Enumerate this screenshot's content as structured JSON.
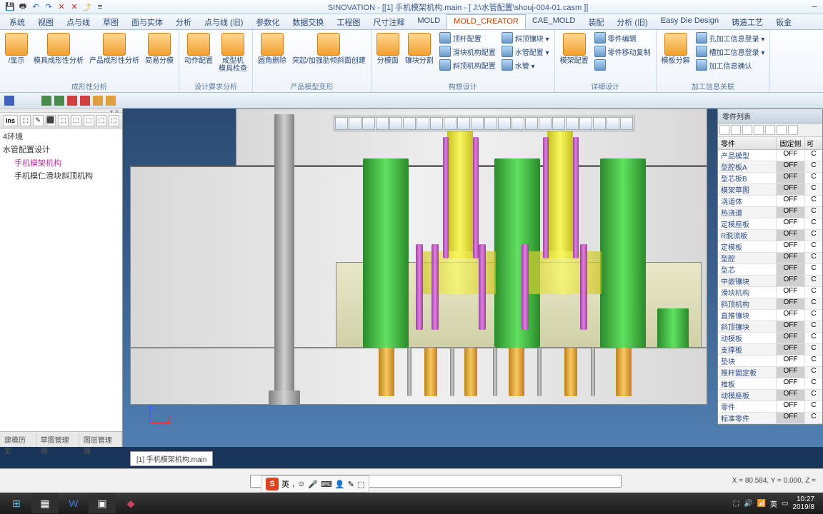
{
  "title_app": "SINOVATION",
  "title_doc": "[[1] 手机模架机构.main - [ J:\\水管配置\\shouj-004-01.casm ]]",
  "menus": [
    "系统",
    "视图",
    "点与线",
    "草图",
    "面与实体",
    "分析",
    "点与线 (旧)",
    "参数化",
    "数据交换",
    "工程图",
    "尺寸注释",
    "MOLD",
    "MOLD_CREATOR",
    "CAE_MOLD",
    "装配",
    "分析 (旧)",
    "Easy Die Design",
    "铸造工艺",
    "钣金"
  ],
  "active_menu": "MOLD_CREATOR",
  "ribbon_groups": [
    {
      "label": "成形性分析",
      "buttons": [
        "/显示",
        "模具成形性分析",
        "产品成形性分析",
        "简易分模"
      ]
    },
    {
      "label": "设计要求分析",
      "buttons": [
        "动作配置",
        "成型机\n模具检查"
      ]
    },
    {
      "label": "产品模型变形",
      "buttons": [
        "圆角删除",
        "突起/加强肋倾斜面创建"
      ]
    },
    {
      "label": "构想设计",
      "buttons": [
        "分模面",
        "镶块分割"
      ],
      "small_cols": [
        [
          "顶杆配置",
          "滑块机构配置",
          "斜顶机构配置"
        ],
        [
          "斜顶镶块 ▾",
          "水管配置 ▾",
          "水管 ▾"
        ]
      ]
    },
    {
      "label": "详细设计",
      "buttons": [
        "模架配置"
      ],
      "small_cols": [
        [
          "零件编辑",
          "零件移动复制",
          ""
        ]
      ]
    },
    {
      "label": "加工信息关联",
      "buttons": [
        "模板分解"
      ],
      "small_cols": [
        [
          "孔加工信息登录 ▾",
          "槽加工信息登录 ▾",
          "加工信息确认"
        ]
      ]
    }
  ],
  "tree": {
    "toolbar_btns": [
      "Ins",
      "⬚",
      "✎",
      "⬛",
      "⬚",
      "⬚",
      "⬚",
      "⬚",
      "⬚"
    ],
    "title": "4环境",
    "root": "水管配置设计",
    "items": [
      {
        "label": "手机模架机构",
        "sel": true
      },
      {
        "label": "手机模仁滑块斜顶机构",
        "sel": false
      }
    ],
    "tabs": [
      "建模历史",
      "草图管理器",
      "图层管理器"
    ]
  },
  "parts": {
    "title": "零件列表",
    "columns": [
      "零件",
      "固定侧",
      "可"
    ],
    "rows": [
      {
        "name": "产品模型",
        "v": "OFF",
        "alt": false
      },
      {
        "name": "型腔板A",
        "v": "OFF",
        "alt": true
      },
      {
        "name": "型芯板B",
        "v": "OFF",
        "alt": false,
        "hl": true
      },
      {
        "name": "模架草图",
        "v": "OFF",
        "alt": true
      },
      {
        "name": "浇道体",
        "v": "OFF",
        "alt": false
      },
      {
        "name": "热浇道",
        "v": "OFF",
        "alt": true
      },
      {
        "name": "定模座板",
        "v": "OFF",
        "alt": false
      },
      {
        "name": "R脱流板",
        "v": "OFF",
        "alt": true
      },
      {
        "name": "定模板",
        "v": "OFF",
        "alt": false
      },
      {
        "name": "型腔",
        "v": "OFF",
        "alt": true
      },
      {
        "name": "型芯",
        "v": "OFF",
        "alt": false,
        "hl": true
      },
      {
        "name": "中嵌镶块",
        "v": "OFF",
        "alt": true
      },
      {
        "name": "滑块机构",
        "v": "OFF",
        "alt": false
      },
      {
        "name": "斜顶机构",
        "v": "OFF",
        "alt": true
      },
      {
        "name": "直推镶块",
        "v": "OFF",
        "alt": false
      },
      {
        "name": "斜顶镶块",
        "v": "OFF",
        "alt": true
      },
      {
        "name": "动模板",
        "v": "OFF",
        "alt": false,
        "hl": true
      },
      {
        "name": "支撑板",
        "v": "OFF",
        "alt": true
      },
      {
        "name": "垫块",
        "v": "OFF",
        "alt": false
      },
      {
        "name": "推杆固定板",
        "v": "OFF",
        "alt": true
      },
      {
        "name": "推板",
        "v": "OFF",
        "alt": false
      },
      {
        "name": "动模座板",
        "v": "OFF",
        "alt": true
      },
      {
        "name": "零件",
        "v": "OFF",
        "alt": false
      },
      {
        "name": "标准零件",
        "v": "OFF",
        "alt": true
      }
    ]
  },
  "doc_tab": "[1] 手机模架机构.main",
  "status_coords": "X =   80.584, Y =    0.000, Z =",
  "ime": {
    "label": "英",
    "icons": [
      "☺",
      "●",
      "⌨",
      "≡",
      "✎",
      "⬚"
    ]
  },
  "taskbar": {
    "time": "10:27",
    "date": "2019/8"
  }
}
